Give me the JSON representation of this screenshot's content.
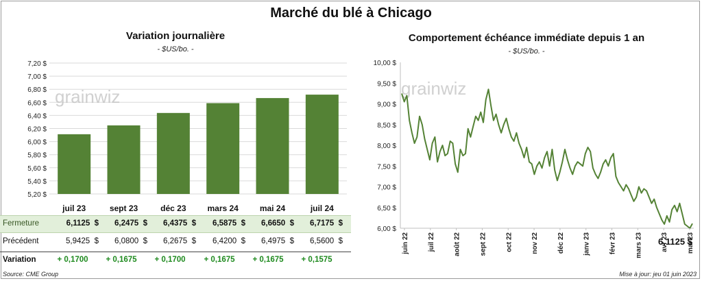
{
  "title": "Marché du blé à Chicago",
  "left": {
    "subtitle": "Variation journalière",
    "unit": "- $US/bo. -",
    "watermark": "grainwiz",
    "chart_data": {
      "type": "bar",
      "categories": [
        "juil 23",
        "sept 23",
        "déc 23",
        "mars 24",
        "mai 24",
        "juil 24"
      ],
      "series": [
        {
          "values": [
            6.1125,
            6.2475,
            6.4375,
            6.5875,
            6.665,
            6.7175
          ]
        }
      ],
      "ylim": [
        5.2,
        7.2
      ],
      "yticks": [
        "7,20 $",
        "7,00 $",
        "6,80 $",
        "6,60 $",
        "6,40 $",
        "6,20 $",
        "6,00 $",
        "5,80 $",
        "5,60 $",
        "5,40 $",
        "5,20 $"
      ],
      "color": "#548235",
      "grid": true
    },
    "table": {
      "rows": [
        {
          "label": "Fermeture",
          "values": [
            "6,1125",
            "6,2475",
            "6,4375",
            "6,5875",
            "6,6650",
            "6,7175"
          ],
          "currency": "$"
        },
        {
          "label": "Précédent",
          "values": [
            "5,9425",
            "6,0800",
            "6,2675",
            "6,4200",
            "6,4975",
            "6,5600"
          ],
          "currency": "$"
        },
        {
          "label": "Variation",
          "values": [
            "+ 0,1700",
            "+ 0,1675",
            "+ 0,1700",
            "+ 0,1675",
            "+ 0,1675",
            "+ 0,1575"
          ]
        }
      ]
    },
    "source": "Source: CME Group"
  },
  "right": {
    "subtitle": "Comportement  échéance immédiate depuis 1 an",
    "unit": "- $US/bo. -",
    "watermark": "grainwiz",
    "last_value": "6,1125 $",
    "update": "Mise à jour: jeu 01 juin 2023",
    "chart_data": {
      "type": "line",
      "ylim": [
        6.0,
        10.0
      ],
      "yticks": [
        "10,00 $",
        "9,50 $",
        "9,00 $",
        "8,50 $",
        "8,00 $",
        "7,50 $",
        "7,00 $",
        "6,50 $",
        "6,00 $"
      ],
      "xticks": [
        "juin 22",
        "juil 22",
        "août 22",
        "sept 22",
        "oct 22",
        "nov 22",
        "déc 22",
        "janv 23",
        "févr 23",
        "mars 23",
        "avr 23",
        "mai 23"
      ],
      "color": "#548235",
      "values": [
        9.25,
        9.05,
        9.2,
        8.6,
        8.3,
        8.05,
        8.2,
        8.7,
        8.5,
        8.15,
        7.9,
        7.65,
        8.05,
        8.2,
        7.6,
        7.85,
        8.0,
        7.75,
        7.8,
        8.1,
        8.05,
        7.55,
        7.35,
        7.9,
        7.75,
        7.8,
        8.4,
        8.2,
        8.45,
        8.7,
        8.6,
        8.8,
        8.55,
        9.1,
        9.35,
        8.95,
        8.6,
        8.75,
        8.5,
        8.3,
        8.5,
        8.65,
        8.4,
        8.2,
        8.1,
        8.3,
        8.05,
        7.9,
        7.7,
        7.95,
        7.6,
        7.55,
        7.3,
        7.5,
        7.6,
        7.45,
        7.7,
        7.85,
        7.5,
        7.9,
        7.4,
        7.15,
        7.35,
        7.6,
        7.9,
        7.65,
        7.45,
        7.3,
        7.5,
        7.6,
        7.55,
        7.5,
        7.8,
        7.95,
        7.85,
        7.45,
        7.3,
        7.2,
        7.35,
        7.55,
        7.65,
        7.5,
        7.7,
        7.8,
        7.25,
        7.1,
        7.0,
        6.9,
        7.05,
        6.95,
        6.8,
        6.65,
        6.75,
        7.0,
        6.85,
        6.95,
        6.9,
        6.75,
        6.6,
        6.7,
        6.5,
        6.35,
        6.2,
        6.1,
        6.3,
        6.15,
        6.45,
        6.55,
        6.4,
        6.6,
        6.35,
        6.1,
        6.05,
        6.0,
        6.1125
      ]
    }
  }
}
